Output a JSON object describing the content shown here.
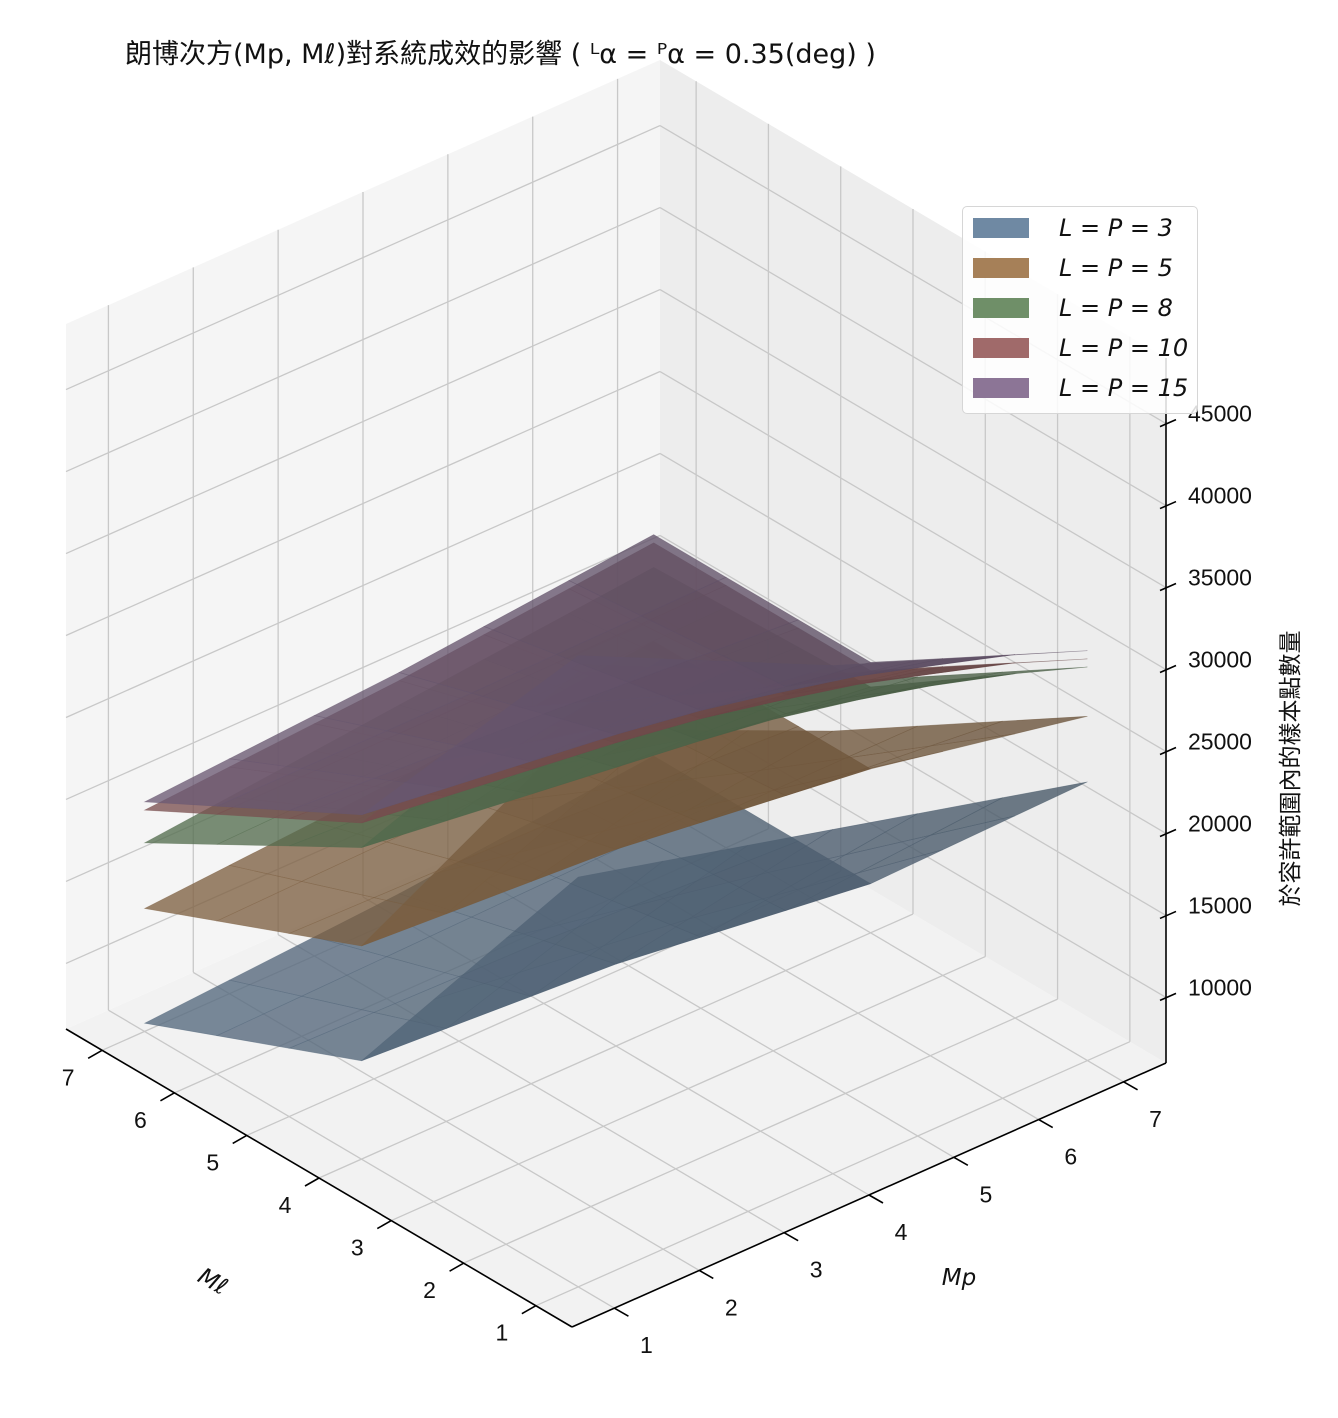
{
  "title": "朗博次方(Mp, Mℓ)對系統成效的影響 ( ᴸα = ᴾα = 0.35(deg) )",
  "chart_data": {
    "type": "surface3d",
    "title": "朗博次方(Mp, Mℓ)對系統成效的影響 ( ᴸα = ᴾα = 0.35(deg) )",
    "xlabel": "Mℓ",
    "ylabel": "Mp",
    "zlabel": "於容許範圍內的樣本點數量",
    "x_ticks": [
      "1",
      "2",
      "3",
      "4",
      "5",
      "6",
      "7"
    ],
    "y_ticks": [
      "1",
      "2",
      "3",
      "4",
      "5",
      "6",
      "7"
    ],
    "z_ticks": [
      "10000",
      "15000",
      "20000",
      "25000",
      "30000",
      "35000",
      "40000",
      "45000"
    ],
    "xlim": [
      0.5,
      7.5
    ],
    "ylim": [
      0.5,
      7.5
    ],
    "zlim": [
      6000,
      49000
    ],
    "grid": true,
    "legend_position": "top-right",
    "series": [
      {
        "name": "L = P = 3",
        "color": "#6f89a3",
        "grid_x": [
          1,
          4,
          7
        ],
        "grid_y": [
          1,
          4,
          7
        ],
        "z": [
          [
            31000,
            27000,
            23000
          ],
          [
            12000,
            11000,
            9000
          ],
          [
            6500,
            7500,
            9000
          ]
        ]
      },
      {
        "name": "L = P = 5",
        "color": "#a68058",
        "grid_x": [
          1,
          4,
          7
        ],
        "grid_y": [
          1,
          4,
          7
        ],
        "z": [
          [
            40000,
            33000,
            27000
          ],
          [
            19000,
            18000,
            16000
          ],
          [
            13500,
            14500,
            16000
          ]
        ]
      },
      {
        "name": "L = P = 8",
        "color": "#6f8f68",
        "grid_x": [
          1,
          4,
          7
        ],
        "grid_y": [
          1,
          4,
          7
        ],
        "z": [
          [
            43500,
            36000,
            30000
          ],
          [
            25000,
            23000,
            21000
          ],
          [
            17500,
            19000,
            20500
          ]
        ]
      },
      {
        "name": "L = P = 10",
        "color": "#a06a6a",
        "grid_x": [
          1,
          4,
          7
        ],
        "grid_y": [
          1,
          4,
          7
        ],
        "z": [
          [
            44000,
            36500,
            30500
          ],
          [
            26500,
            24500,
            22000
          ],
          [
            19500,
            20500,
            22000
          ]
        ]
      },
      {
        "name": "L = P = 15",
        "color": "#8c7596",
        "grid_x": [
          1,
          4,
          7
        ],
        "grid_y": [
          1,
          4,
          7
        ],
        "z": [
          [
            44500,
            37000,
            31000
          ],
          [
            27000,
            25000,
            22500
          ],
          [
            20000,
            21000,
            22500
          ]
        ]
      }
    ]
  }
}
